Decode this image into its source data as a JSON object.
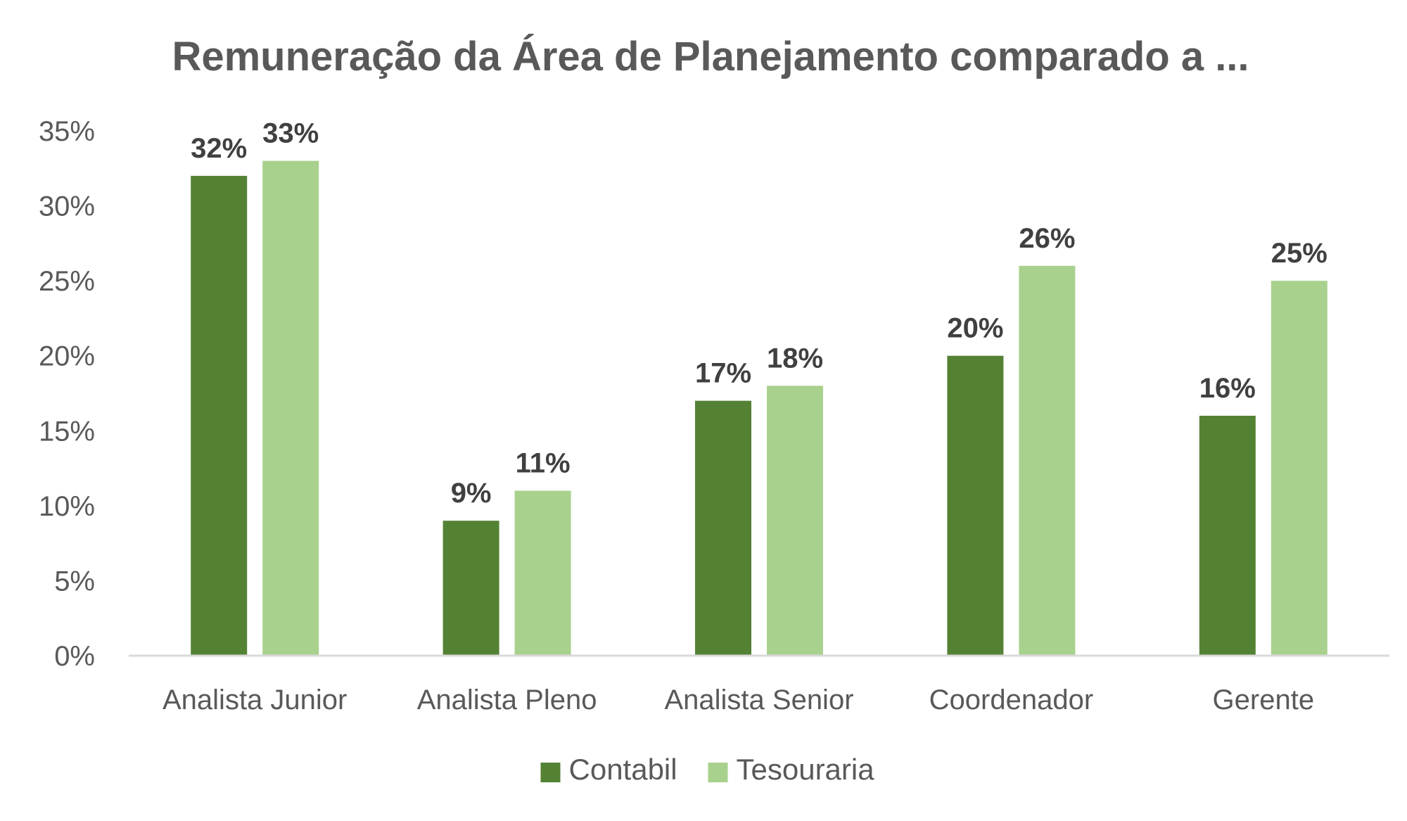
{
  "chart_data": {
    "type": "bar",
    "title": "Remuneração da Área de Planejamento comparado a ...",
    "categories": [
      "Analista Junior",
      "Analista Pleno",
      "Analista Senior",
      "Coordenador",
      "Gerente"
    ],
    "series": [
      {
        "name": "Contabil",
        "color": "#548235",
        "values": [
          32,
          9,
          17,
          20,
          16
        ],
        "labels": [
          "32%",
          "9%",
          "17%",
          "20%",
          "16%"
        ]
      },
      {
        "name": "Tesouraria",
        "color": "#A9D18E",
        "values": [
          33,
          11,
          18,
          26,
          25
        ],
        "labels": [
          "33%",
          "11%",
          "18%",
          "26%",
          "25%"
        ]
      }
    ],
    "ylim": [
      0,
      35
    ],
    "yticks": [
      0,
      5,
      10,
      15,
      20,
      25,
      30,
      35
    ],
    "ytick_labels": [
      "0%",
      "5%",
      "10%",
      "15%",
      "20%",
      "25%",
      "30%",
      "35%"
    ],
    "xlabel": "",
    "ylabel": "",
    "grid": false,
    "legend_position": "bottom",
    "axis_color": "#D9D9D9"
  }
}
